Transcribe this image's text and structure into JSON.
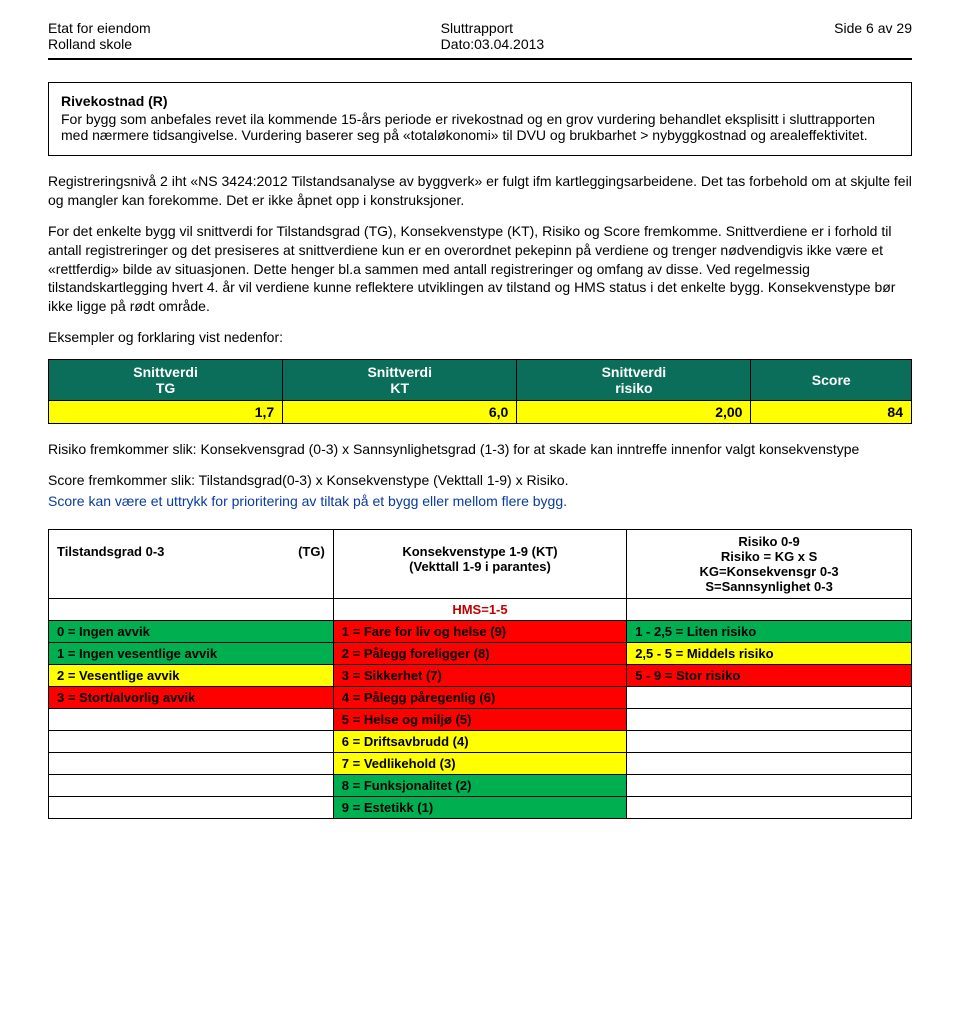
{
  "header": {
    "left_l1": "Etat for eiendom",
    "left_l2": "Rolland skole",
    "center_l1": "Sluttrapport",
    "center_l2": "Dato:03.04.2013",
    "right_l1": "Side 6 av 29"
  },
  "box": {
    "title": "Rivekostnad (R)",
    "body": "For bygg som anbefales revet ila kommende 15-års periode er rivekostnad og en grov vurdering behandlet eksplisitt i sluttrapporten med nærmere tidsangivelse. Vurdering baserer seg på «totaløkonomi» til DVU og brukbarhet > nybyggkostnad og arealeffektivitet."
  },
  "para1": "Registreringsnivå 2 iht «NS 3424:2012 Tilstandsanalyse av byggverk» er fulgt ifm kartleggingsarbeidene. Det tas forbehold om at skjulte feil og mangler kan forekomme. Det er ikke åpnet opp i konstruksjoner.",
  "para2": "For det enkelte bygg vil snittverdi for Tilstandsgrad (TG), Konsekvenstype (KT), Risiko og Score fremkomme. Snittverdiene er i forhold til antall registreringer og det presiseres at snittverdiene kun er en overordnet pekepinn på verdiene og trenger nødvendigvis ikke være et «rettferdig» bilde av situasjonen. Dette henger bl.a sammen med antall registreringer og omfang av disse. Ved regelmessig tilstandskartlegging hvert 4. år vil verdiene kunne reflektere utviklingen av tilstand og HMS status i det enkelte bygg. Konsekvenstype bør ikke ligge på rødt område.",
  "para3": "Eksempler og forklaring vist nedenfor:",
  "snitt": {
    "headers": [
      "Snittverdi\nTG",
      "Snittverdi\nKT",
      "Snittverdi\nrisiko",
      "Score"
    ],
    "values": [
      "1,7",
      "6,0",
      "2,00",
      "84"
    ]
  },
  "para4a": "Risiko fremkommer slik: Konsekvensgrad (0-3) x Sannsynlighetsgrad (1-3) for at skade kan inntreffe innenfor valgt konsekvenstype",
  "para4b": "Score fremkommer slik: Tilstandsgrad(0-3) x Konsekvenstype (Vekttall 1-9) x Risiko.",
  "para4c": "Score kan være et uttrykk for prioritering av tiltak på et bygg eller mellom flere bygg.",
  "legend": {
    "h1a": "Tilstandsgrad 0-3",
    "h1b": "(TG)",
    "h2a": "Konsekvenstype 1-9  (KT)",
    "h2b": "(Vekttall 1-9 i parantes)",
    "h3a": "Risiko 0-9",
    "h3b": "Risiko = KG x S",
    "h3c": "KG=Konsekvensgr 0-3",
    "h3d": "S=Sannsynlighet 0-3",
    "hms": "HMS=1-5",
    "col1": [
      {
        "text": "0 = Ingen avvik",
        "bg": "bg-green"
      },
      {
        "text": "1 = Ingen vesentlige avvik",
        "bg": "bg-green"
      },
      {
        "text": "2 = Vesentlige avvik",
        "bg": "bg-yellow"
      },
      {
        "text": "3 = Stort/alvorlig avvik",
        "bg": "bg-red"
      }
    ],
    "col2": [
      {
        "text": "1 = Fare for liv og helse (9)",
        "bg": "bg-red"
      },
      {
        "text": "2 = Pålegg foreligger (8)",
        "bg": "bg-red"
      },
      {
        "text": "3 = Sikkerhet (7)",
        "bg": "bg-red"
      },
      {
        "text": "4 = Pålegg påregenlig (6)",
        "bg": "bg-red"
      },
      {
        "text": "5 = Helse og miljø (5)",
        "bg": "bg-red"
      },
      {
        "text": "6 = Driftsavbrudd (4)",
        "bg": "bg-yellow"
      },
      {
        "text": "7 = Vedlikehold (3)",
        "bg": "bg-yellow"
      },
      {
        "text": "8 = Funksjonalitet (2)",
        "bg": "bg-green"
      },
      {
        "text": "9 = Estetikk (1)",
        "bg": "bg-green"
      }
    ],
    "col3": [
      {
        "text": "1 - 2,5 = Liten risiko",
        "bg": "bg-green"
      },
      {
        "text": "2,5 - 5 = Middels risiko",
        "bg": "bg-yellow"
      },
      {
        "text": "5 - 9 = Stor risiko",
        "bg": "bg-red"
      }
    ]
  }
}
